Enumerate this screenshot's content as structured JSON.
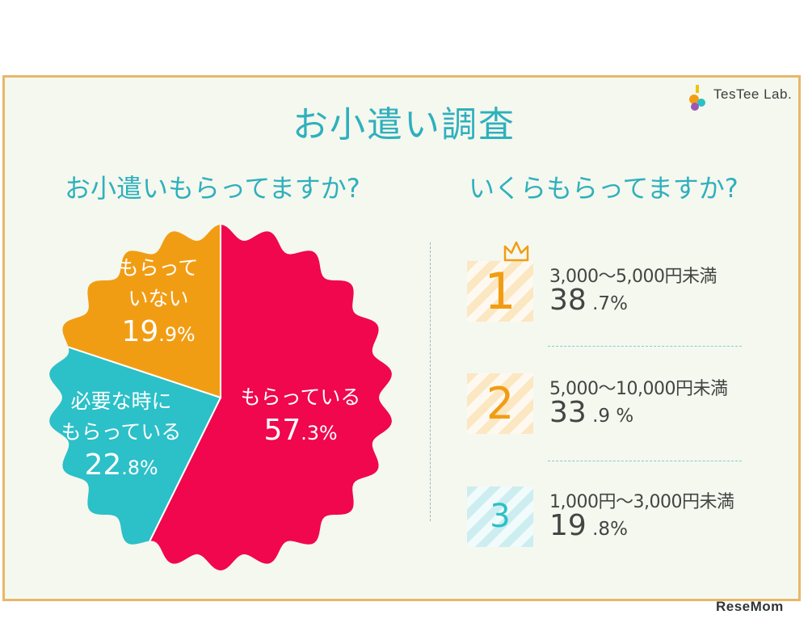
{
  "brand": {
    "logo_text": "TesTee Lab.",
    "watermark": "ReseMom"
  },
  "title": "お小遣い調査",
  "left_subtitle": "お小遣いもらってますか?",
  "right_subtitle": "いくらもらってますか?",
  "colors": {
    "accent": "#2fb0bd",
    "red": "#f0074e",
    "orange": "#f19d14",
    "teal": "#2cc0c8",
    "frame": "#e7b86a"
  },
  "chart_data": [
    {
      "type": "pie",
      "title": "お小遣いもらってますか?",
      "slices": [
        {
          "label_lines": [
            "もらっている"
          ],
          "value": 57.3,
          "int": "57",
          "dec": ".3%",
          "color": "#f0074e"
        },
        {
          "label_lines": [
            "必要な時に",
            "もらっている"
          ],
          "value": 22.8,
          "int": "22",
          "dec": ".8%",
          "color": "#2cc0c8"
        },
        {
          "label_lines": [
            "もらって",
            "いない"
          ],
          "value": 19.9,
          "int": "19",
          "dec": ".9%",
          "color": "#f19d14"
        }
      ]
    },
    {
      "type": "table",
      "title": "いくらもらってますか?",
      "rows": [
        {
          "rank": "1",
          "label": "3,000〜5,000円未満",
          "value_int": "38",
          "value_dec": ".7%",
          "value": 38.7,
          "color": "#f19d14"
        },
        {
          "rank": "2",
          "label": "5,000〜10,000円未満",
          "value_int": "33",
          "value_dec": ".9 %",
          "value": 33.9,
          "color": "#f19d14"
        },
        {
          "rank": "3",
          "label": "1,000円〜3,000円未満",
          "value_int": "19",
          "value_dec": ".8%",
          "value": 19.8,
          "color": "#2cc0c8"
        }
      ]
    }
  ]
}
